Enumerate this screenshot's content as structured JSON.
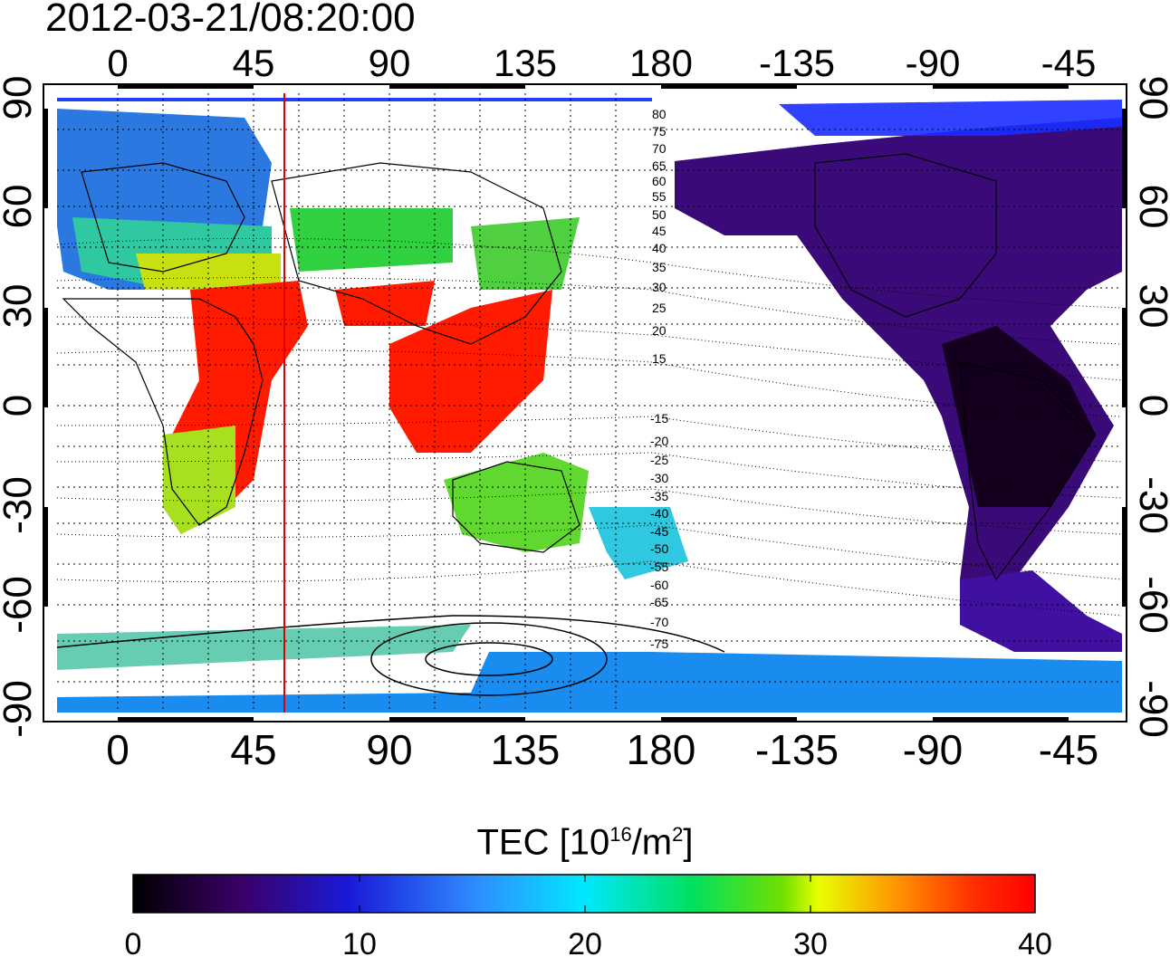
{
  "timestamp": "2012-03-21/08:20:00",
  "lon_ticks": [
    "0",
    "45",
    "90",
    "135",
    "180",
    "-135",
    "-90",
    "-45"
  ],
  "lat_ticks": [
    "90",
    "60",
    "30",
    "0",
    "-30",
    "-60",
    "-90"
  ],
  "contour_labels_north": [
    "80",
    "75",
    "70",
    "65",
    "60",
    "55",
    "50",
    "45",
    "40",
    "35",
    "30",
    "25",
    "20",
    "15"
  ],
  "contour_labels_south": [
    "-15",
    "-20",
    "-25",
    "-30",
    "-35",
    "-40",
    "-45",
    "-50",
    "-55",
    "-60",
    "-65",
    "-70",
    "-75"
  ],
  "colorbar": {
    "label_prefix": "TEC  [10",
    "label_exp": "16",
    "label_mid": "/m",
    "label_exp2": "2",
    "label_suffix": "]",
    "ticks": [
      "0",
      "10",
      "20",
      "30",
      "40"
    ],
    "range": [
      0,
      40
    ]
  },
  "terminator_longitude": 55,
  "colors": {
    "terminator": "#e00000",
    "high_tec": "#ff1a00",
    "low_tec": "#2a0050"
  }
}
